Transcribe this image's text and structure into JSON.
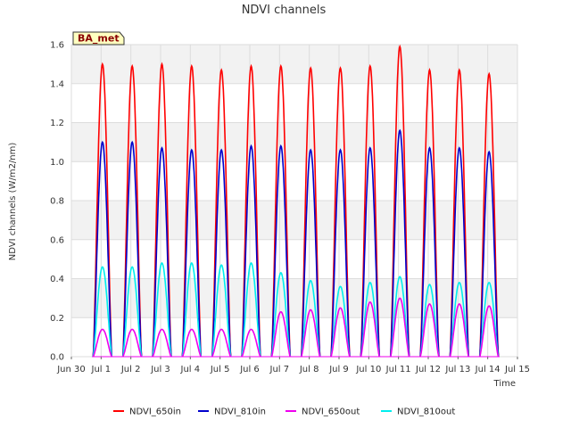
{
  "chart_data": {
    "type": "line",
    "title": "NDVI channels",
    "xlabel": "Time",
    "ylabel": "NDVI channels (W/m2/nm)",
    "badge": "BA_met",
    "ylim": [
      0,
      1.6
    ],
    "xlim_days": [
      0,
      15
    ],
    "y_ticks": [
      "0.0",
      "0.2",
      "0.4",
      "0.6",
      "0.8",
      "1.0",
      "1.2",
      "1.4",
      "1.6"
    ],
    "x_ticks": [
      "Jun 30",
      "Jul 1",
      "Jul 2",
      "Jul 3",
      "Jul 4",
      "Jul 5",
      "Jul 6",
      "Jul 7",
      "Jul 8",
      "Jul 9",
      "Jul 10",
      "Jul 11",
      "Jul 12",
      "Jul 13",
      "Jul 14",
      "Jul 15"
    ],
    "grid": true,
    "legend_position": "bottom",
    "series": [
      {
        "name": "NDVI_650in",
        "color": "#ff0000",
        "daily_peaks": [
          1.5,
          1.49,
          1.5,
          1.49,
          1.47,
          1.49,
          1.49,
          1.48,
          1.48,
          1.49,
          1.59,
          1.47,
          1.47,
          1.45
        ]
      },
      {
        "name": "NDVI_810in",
        "color": "#0000cc",
        "daily_peaks": [
          1.1,
          1.1,
          1.07,
          1.06,
          1.06,
          1.08,
          1.08,
          1.06,
          1.06,
          1.07,
          1.16,
          1.07,
          1.07,
          1.05
        ]
      },
      {
        "name": "NDVI_650out",
        "color": "#ee00ee",
        "daily_peaks": [
          0.14,
          0.14,
          0.14,
          0.14,
          0.14,
          0.14,
          0.23,
          0.24,
          0.25,
          0.28,
          0.3,
          0.27,
          0.27,
          0.26
        ]
      },
      {
        "name": "NDVI_810out",
        "color": "#00eeee",
        "daily_peaks": [
          0.46,
          0.46,
          0.48,
          0.48,
          0.47,
          0.48,
          0.43,
          0.39,
          0.36,
          0.38,
          0.41,
          0.37,
          0.38,
          0.38
        ]
      }
    ]
  }
}
